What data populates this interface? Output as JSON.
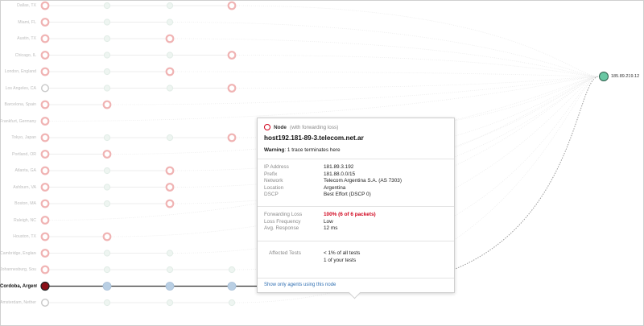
{
  "agents": [
    "Dallas, TX",
    "Miami, FL",
    "Austin, TX",
    "Chicago, IL",
    "London, England",
    "Los Angeles, CA",
    "Barcelona, Spain",
    "Frankfurt, Germany (Dead)",
    "Tokyo, Japan",
    "Portland, OR",
    "Atlanta, GA",
    "Ashburn, VA",
    "Boston, MA",
    "Raleigh, NC",
    "Houston, TX",
    "Cambridge, England",
    "Johannesburg, South Africa",
    "Cordoba, Argentina",
    "Amsterdam, Netherlands"
  ],
  "selected_agent": "Cordoba, Argentina",
  "destination": "185.89.219.12",
  "colors": {
    "accent_red": "#d0021b",
    "node_blue": "#b9cfe4",
    "dest_green": "#69c7a3",
    "link_blue": "#2f6fb2"
  },
  "popup": {
    "type_label": "Node",
    "type_sub": "(with forwarding loss)",
    "hostname": "host192.181-89-3.telecom.net.ar",
    "warning_label": "Warning",
    "warning_text": ": 1 trace terminates here",
    "details": [
      {
        "label": "IP Address",
        "value": "181.89.3.192"
      },
      {
        "label": "Prefix",
        "value": "181.88.0.0/15"
      },
      {
        "label": "Network",
        "value": "Telecom Argentina S.A. (AS 7303)"
      },
      {
        "label": "Location",
        "value": "Argentina"
      },
      {
        "label": "DSCP",
        "value": "Best Effort (DSCP 0)"
      }
    ],
    "metrics": [
      {
        "label": "Forwarding Loss",
        "value": "100% (6 of 6 packets)"
      },
      {
        "label": "Loss Frequency",
        "value": "Low"
      },
      {
        "label": "Avg. Response",
        "value": "12 ms"
      }
    ],
    "affected_label": "Affected Tests",
    "affected_values": [
      "< 1% of all tests",
      "1 of your tests"
    ],
    "link_text": "Show only agents using this node"
  }
}
